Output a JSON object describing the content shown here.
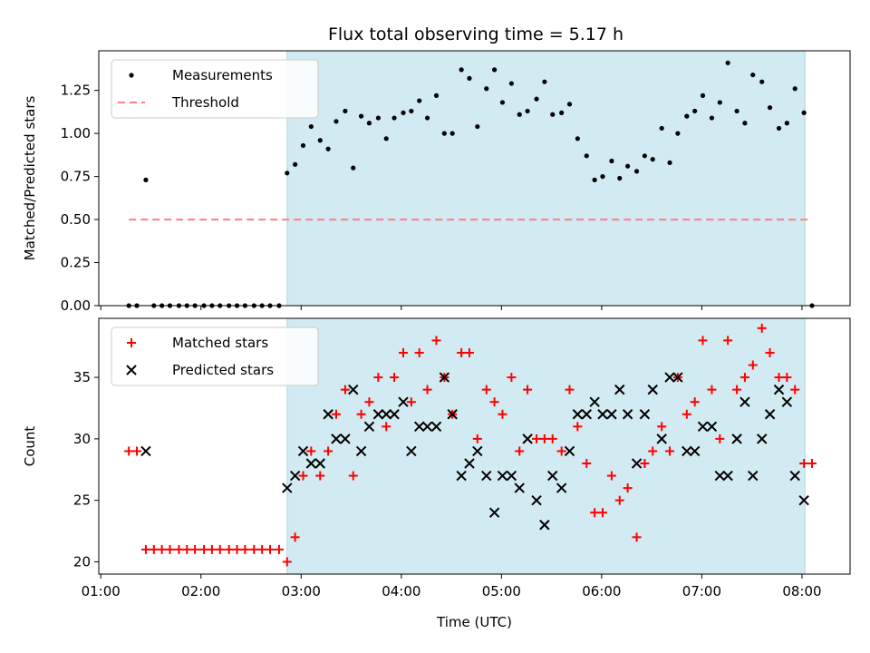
{
  "chart_data": [
    {
      "type": "scatter",
      "title": "Flux total observing time = 5.17 h",
      "xlabel": "",
      "ylabel": "Matched/Predicted stars",
      "xlim": [
        0.98,
        8.48
      ],
      "ylim": [
        0,
        1.48
      ],
      "yticks": [
        0,
        0.25,
        0.5,
        0.75,
        1.0,
        1.25
      ],
      "ytick_labels": [
        "0.00",
        "0.25",
        "0.50",
        "0.75",
        "1.00",
        "1.25"
      ],
      "shaded_span": [
        2.86,
        8.03
      ],
      "shade_color": "#add8e6",
      "threshold": {
        "y": 0.5,
        "x_start": 1.28,
        "x_end": 8.1,
        "color": "#ff7f7f"
      },
      "legend": [
        "Measurements",
        "Threshold"
      ],
      "series": [
        {
          "name": "Measurements",
          "marker": "dot",
          "color": "#000000",
          "x": [
            1.28,
            1.36,
            1.45,
            1.53,
            1.61,
            1.69,
            1.78,
            1.86,
            1.94,
            2.03,
            2.11,
            2.19,
            2.28,
            2.36,
            2.44,
            2.53,
            2.61,
            2.69,
            2.78,
            2.86,
            2.94,
            3.02,
            3.1,
            3.19,
            3.27,
            3.35,
            3.44,
            3.52,
            3.6,
            3.68,
            3.77,
            3.85,
            3.93,
            4.02,
            4.1,
            4.18,
            4.26,
            4.35,
            4.43,
            4.51,
            4.6,
            4.68,
            4.76,
            4.85,
            4.93,
            5.01,
            5.1,
            5.18,
            5.26,
            5.35,
            5.43,
            5.51,
            5.6,
            5.68,
            5.76,
            5.85,
            5.93,
            6.01,
            6.1,
            6.18,
            6.26,
            6.35,
            6.43,
            6.51,
            6.6,
            6.68,
            6.76,
            6.85,
            6.93,
            7.01,
            7.1,
            7.18,
            7.26,
            7.35,
            7.43,
            7.51,
            7.6,
            7.68,
            7.77,
            7.85,
            7.93,
            8.02,
            8.1
          ],
          "y": [
            0,
            0,
            0.73,
            0,
            0,
            0,
            0,
            0,
            0,
            0,
            0,
            0,
            0,
            0,
            0,
            0,
            0,
            0,
            0,
            0.77,
            0.82,
            0.93,
            1.04,
            0.96,
            0.91,
            1.07,
            1.13,
            0.8,
            1.1,
            1.06,
            1.09,
            0.97,
            1.09,
            1.12,
            1.13,
            1.19,
            1.09,
            1.22,
            1.0,
            1.0,
            1.37,
            1.32,
            1.04,
            1.26,
            1.37,
            1.18,
            1.29,
            1.11,
            1.13,
            1.2,
            1.3,
            1.11,
            1.12,
            1.17,
            0.97,
            0.87,
            0.73,
            0.75,
            0.84,
            0.74,
            0.81,
            0.78,
            0.87,
            0.85,
            1.03,
            0.83,
            1.0,
            1.1,
            1.13,
            1.22,
            1.09,
            1.18,
            1.41,
            1.13,
            1.06,
            1.34,
            1.3,
            1.15,
            1.03,
            1.06,
            1.26,
            1.12,
            0
          ]
        }
      ]
    },
    {
      "type": "scatter",
      "title": "",
      "xlabel": "Time (UTC)",
      "ylabel": "Count",
      "xlim": [
        0.98,
        8.48
      ],
      "ylim": [
        19,
        39.8
      ],
      "xticks": [
        1,
        2,
        3,
        4,
        5,
        6,
        7,
        8
      ],
      "xtick_labels": [
        "01:00",
        "02:00",
        "03:00",
        "04:00",
        "05:00",
        "06:00",
        "07:00",
        "08:00"
      ],
      "yticks": [
        20,
        25,
        30,
        35
      ],
      "ytick_labels": [
        "20",
        "25",
        "30",
        "35"
      ],
      "shaded_span": [
        2.86,
        8.03
      ],
      "shade_color": "#add8e6",
      "legend": [
        "Matched stars",
        "Predicted stars"
      ],
      "series": [
        {
          "name": "Matched stars",
          "marker": "plus",
          "color": "#ff0000",
          "x": [
            1.28,
            1.36,
            1.45,
            1.53,
            1.61,
            1.69,
            1.78,
            1.86,
            1.94,
            2.03,
            2.11,
            2.19,
            2.28,
            2.36,
            2.44,
            2.53,
            2.61,
            2.69,
            2.78,
            2.86,
            2.94,
            3.02,
            3.1,
            3.19,
            3.27,
            3.35,
            3.44,
            3.52,
            3.6,
            3.68,
            3.77,
            3.85,
            3.93,
            4.02,
            4.1,
            4.18,
            4.26,
            4.35,
            4.43,
            4.51,
            4.6,
            4.68,
            4.76,
            4.85,
            4.93,
            5.01,
            5.1,
            5.18,
            5.26,
            5.35,
            5.43,
            5.51,
            5.6,
            5.68,
            5.76,
            5.85,
            5.93,
            6.01,
            6.1,
            6.18,
            6.26,
            6.35,
            6.43,
            6.51,
            6.6,
            6.68,
            6.76,
            6.85,
            6.93,
            7.01,
            7.1,
            7.18,
            7.26,
            7.35,
            7.43,
            7.51,
            7.6,
            7.68,
            7.77,
            7.85,
            7.93,
            8.02,
            8.1
          ],
          "y": [
            29,
            29,
            21,
            21,
            21,
            21,
            21,
            21,
            21,
            21,
            21,
            21,
            21,
            21,
            21,
            21,
            21,
            21,
            21,
            20,
            22,
            27,
            29,
            27,
            29,
            32,
            34,
            27,
            32,
            33,
            35,
            31,
            35,
            37,
            33,
            37,
            34,
            38,
            35,
            32,
            37,
            37,
            30,
            34,
            33,
            32,
            35,
            29,
            34,
            30,
            30,
            30,
            29,
            34,
            31,
            28,
            24,
            24,
            27,
            25,
            26,
            22,
            28,
            29,
            31,
            29,
            35,
            32,
            33,
            38,
            34,
            30,
            38,
            34,
            35,
            36,
            39,
            37,
            35,
            35,
            34,
            28,
            28
          ]
        },
        {
          "name": "Predicted stars",
          "marker": "x",
          "color": "#000000",
          "x": [
            1.45,
            2.86,
            2.94,
            3.02,
            3.1,
            3.19,
            3.27,
            3.35,
            3.44,
            3.52,
            3.6,
            3.68,
            3.77,
            3.85,
            3.93,
            4.02,
            4.1,
            4.18,
            4.26,
            4.35,
            4.43,
            4.51,
            4.6,
            4.68,
            4.76,
            4.85,
            4.93,
            5.01,
            5.1,
            5.18,
            5.26,
            5.35,
            5.43,
            5.51,
            5.6,
            5.68,
            5.76,
            5.85,
            5.93,
            6.01,
            6.1,
            6.18,
            6.26,
            6.35,
            6.43,
            6.51,
            6.6,
            6.68,
            6.76,
            6.85,
            6.93,
            7.01,
            7.1,
            7.18,
            7.26,
            7.35,
            7.43,
            7.51,
            7.6,
            7.68,
            7.77,
            7.85,
            7.93,
            8.02
          ],
          "y": [
            29,
            26,
            27,
            29,
            28,
            28,
            32,
            30,
            30,
            34,
            29,
            31,
            32,
            32,
            32,
            33,
            29,
            31,
            31,
            31,
            35,
            32,
            27,
            28,
            29,
            27,
            24,
            27,
            27,
            26,
            30,
            25,
            23,
            27,
            26,
            29,
            32,
            32,
            33,
            32,
            32,
            34,
            32,
            28,
            32,
            34,
            30,
            35,
            35,
            29,
            29,
            31,
            31,
            27,
            27,
            30,
            33,
            27,
            30,
            32,
            34,
            33,
            27,
            25
          ]
        }
      ]
    }
  ]
}
